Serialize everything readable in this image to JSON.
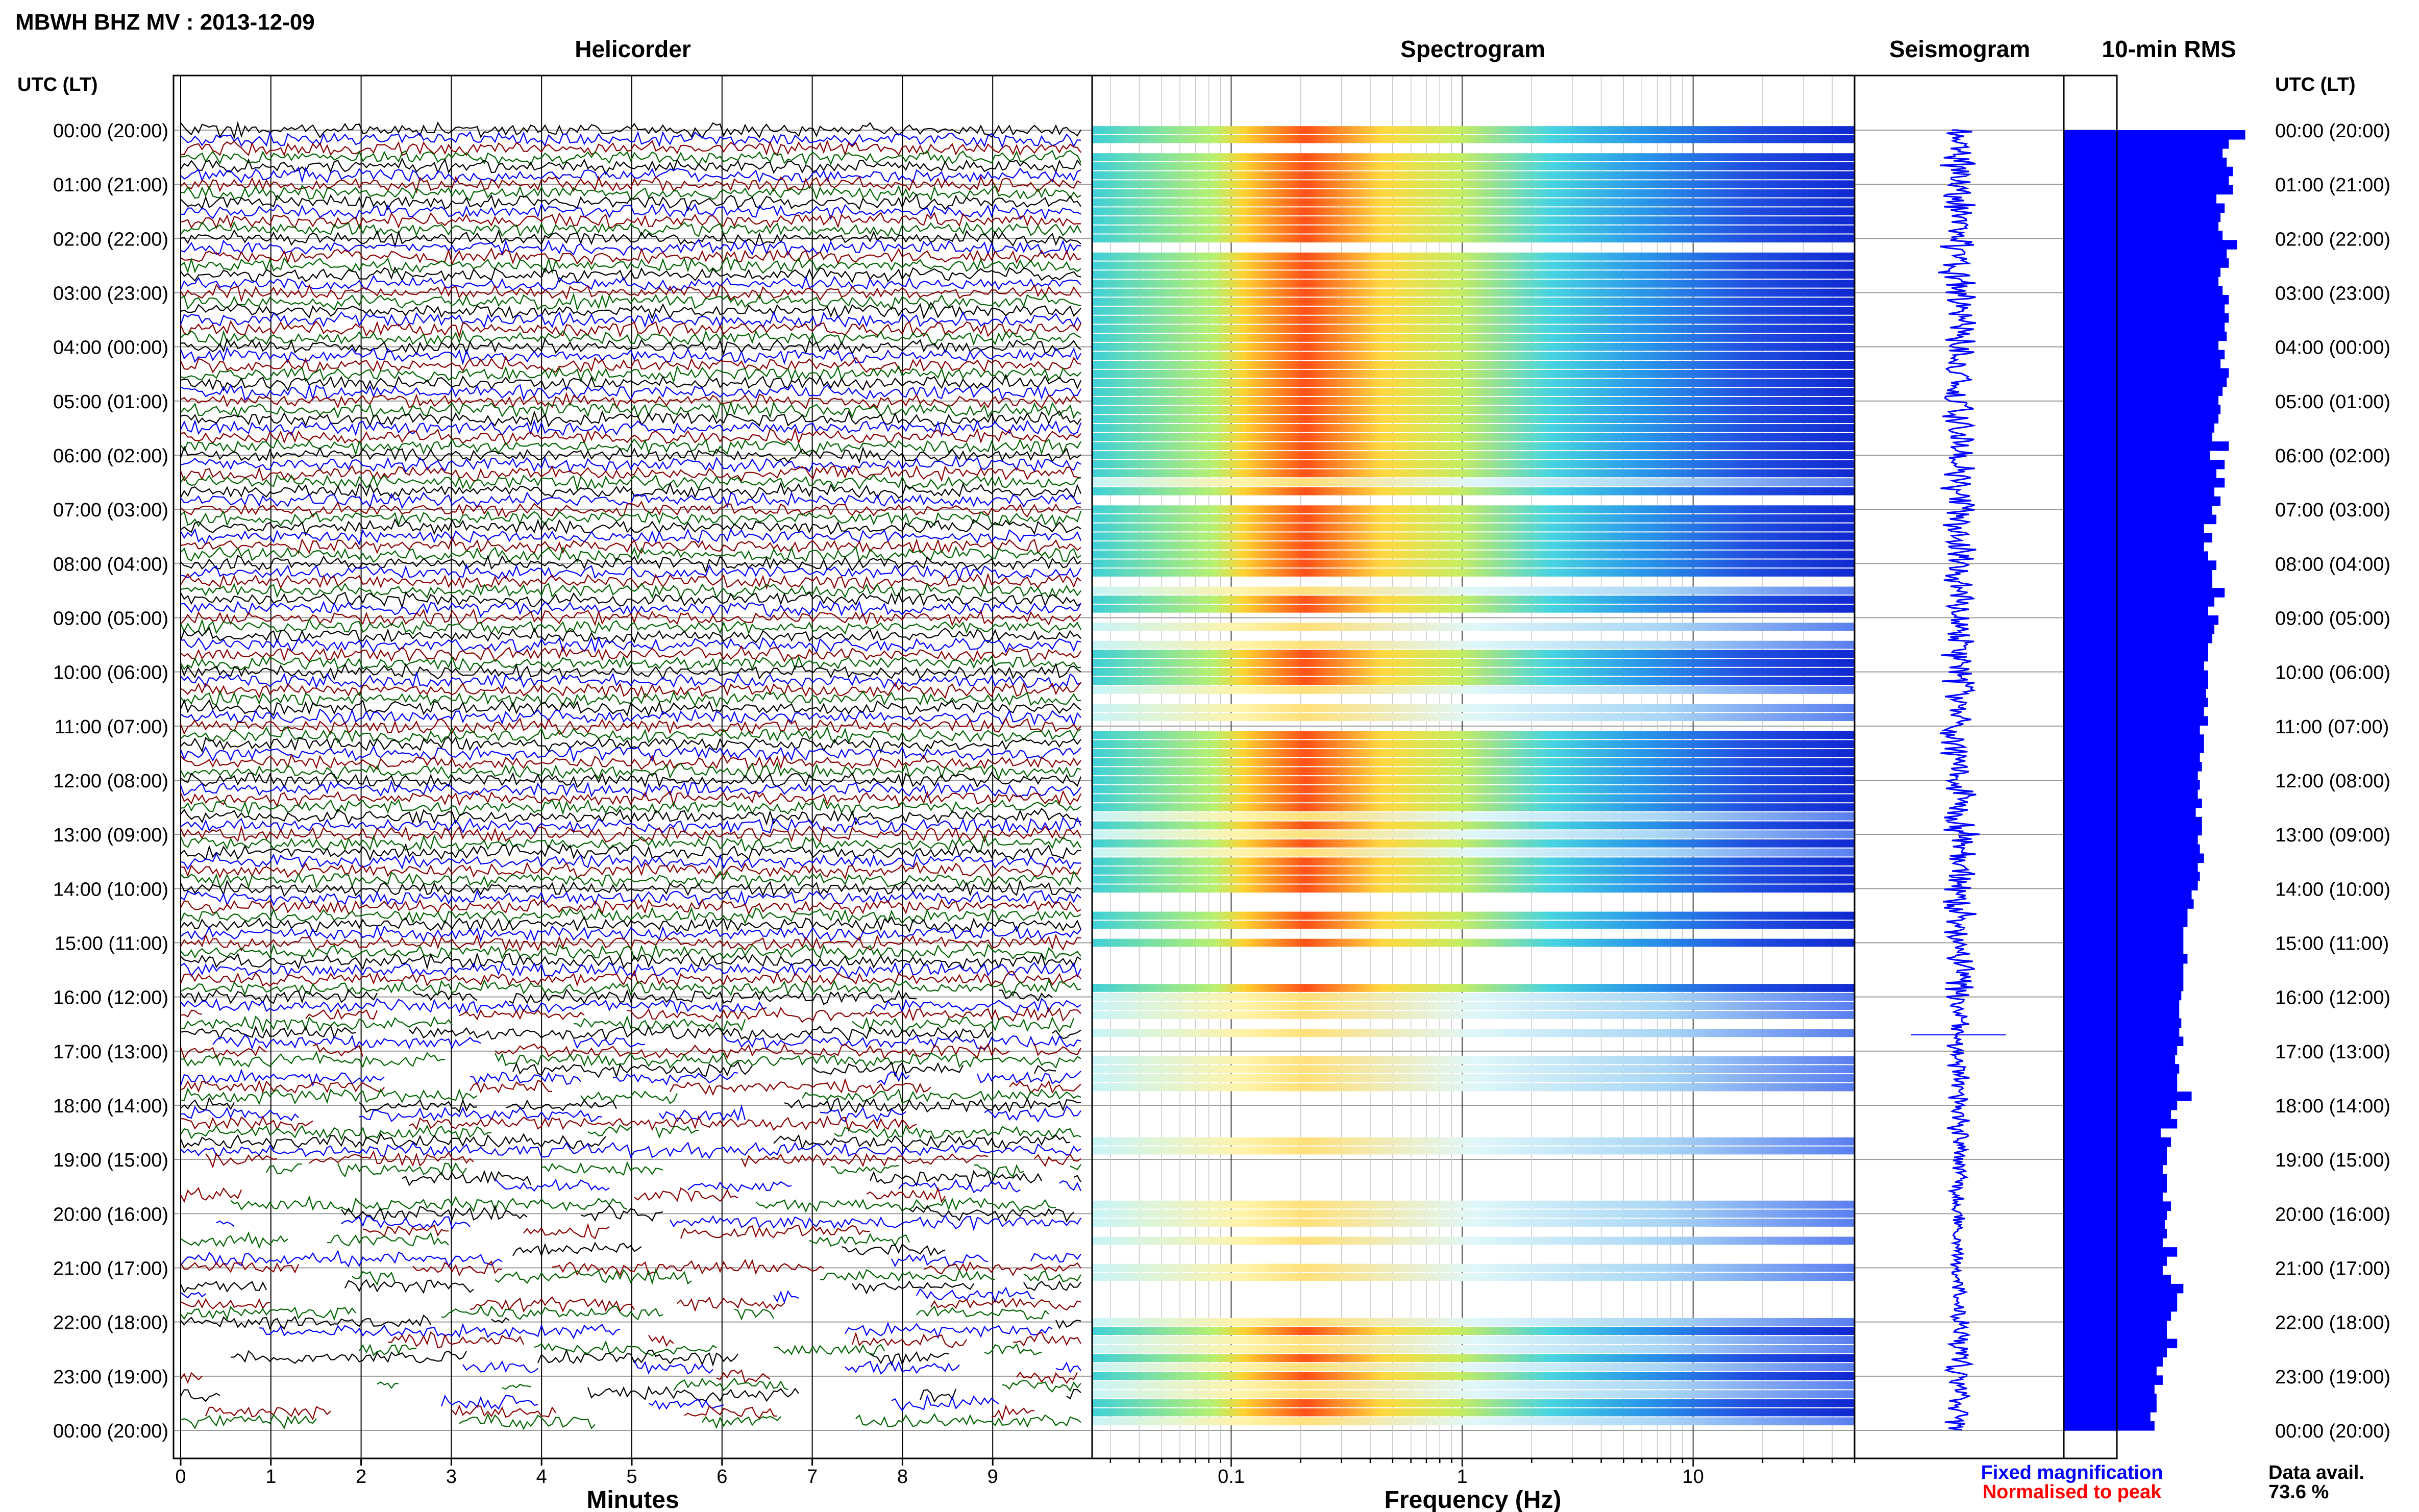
{
  "header": {
    "title": "MBWH BHZ MV : 2013-12-09"
  },
  "panels": {
    "helicorder": "Helicorder",
    "spectrogram": "Spectrogram",
    "seismogram": "Seismogram",
    "rms": "10-min RMS"
  },
  "axes": {
    "utc_header": "UTC (LT)",
    "minutes_label": "Minutes",
    "frequency_label": "Frequency (Hz)"
  },
  "legend": {
    "fixed": "Fixed magnification",
    "normalised": "Normalised to peak",
    "fixed_color": "#0000ff",
    "normalised_color": "#ff0000"
  },
  "availability": {
    "label": "Data avail.",
    "value": "73.6 %"
  },
  "colors": {
    "trace_cycle": [
      "#000000",
      "#0000ff",
      "#8b0000",
      "#006400"
    ],
    "rms_bar": "#0000ff",
    "spectrogram_low": "#1030d0",
    "spectrogram_high": "#ff2000"
  },
  "chart_data": {
    "type": "heatmap",
    "time_labels": [
      "00:00 (20:00)",
      "01:00 (21:00)",
      "02:00 (22:00)",
      "03:00 (23:00)",
      "04:00 (00:00)",
      "05:00 (01:00)",
      "06:00 (02:00)",
      "07:00 (03:00)",
      "08:00 (04:00)",
      "09:00 (05:00)",
      "10:00 (06:00)",
      "11:00 (07:00)",
      "12:00 (08:00)",
      "13:00 (09:00)",
      "14:00 (10:00)",
      "15:00 (11:00)",
      "16:00 (12:00)",
      "17:00 (13:00)",
      "18:00 (14:00)",
      "19:00 (15:00)",
      "20:00 (16:00)",
      "21:00 (17:00)",
      "22:00 (18:00)",
      "23:00 (19:00)",
      "00:00 (20:00)"
    ],
    "minute_ticks": [
      "0",
      "1",
      "2",
      "3",
      "4",
      "5",
      "6",
      "7",
      "8",
      "9"
    ],
    "minute_range": [
      0,
      10
    ],
    "frequency_ticks": [
      "0.1",
      "1",
      "10"
    ],
    "frequency_range_hz": [
      0.025,
      50
    ],
    "frequency_scale": "log",
    "rms_10min": [
      0.88,
      0.8,
      0.77,
      0.79,
      0.82,
      0.8,
      0.82,
      0.74,
      0.78,
      0.76,
      0.75,
      0.77,
      0.84,
      0.79,
      0.8,
      0.76,
      0.75,
      0.77,
      0.8,
      0.78,
      0.8,
      0.78,
      0.79,
      0.75,
      0.78,
      0.76,
      0.8,
      0.79,
      0.77,
      0.75,
      0.76,
      0.75,
      0.73,
      0.72,
      0.8,
      0.71,
      0.78,
      0.74,
      0.78,
      0.73,
      0.76,
      0.72,
      0.74,
      0.68,
      0.72,
      0.68,
      0.7,
      0.74,
      0.72,
      0.72,
      0.78,
      0.73,
      0.7,
      0.75,
      0.73,
      0.72,
      0.7,
      0.7,
      0.68,
      0.7,
      0.7,
      0.69,
      0.7,
      0.68,
      0.7,
      0.66,
      0.68,
      0.68,
      0.66,
      0.67,
      0.65,
      0.66,
      0.65,
      0.67,
      0.64,
      0.67,
      0.67,
      0.65,
      0.66,
      0.68,
      0.65,
      0.66,
      0.65,
      0.62,
      0.63,
      0.6,
      0.6,
      0.58,
      0.58,
      0.58,
      0.6,
      0.58,
      0.58,
      0.58,
      0.57,
      0.56,
      0.56,
      0.57,
      0.56,
      0.58,
      0.55,
      0.54,
      0.56,
      0.55,
      0.55,
      0.62,
      0.55,
      0.52,
      0.55,
      0.47,
      0.52,
      0.5,
      0.5,
      0.48,
      0.5,
      0.5,
      0.48,
      0.52,
      0.5,
      0.49,
      0.5,
      0.48,
      0.55,
      0.5,
      0.48,
      0.52,
      0.58,
      0.55,
      0.55,
      0.52,
      0.5,
      0.5,
      0.55,
      0.5,
      0.48,
      0.45,
      0.48,
      0.44,
      0.45,
      0.45,
      0.42,
      0.44
    ],
    "availability_percent": 73.6
  }
}
